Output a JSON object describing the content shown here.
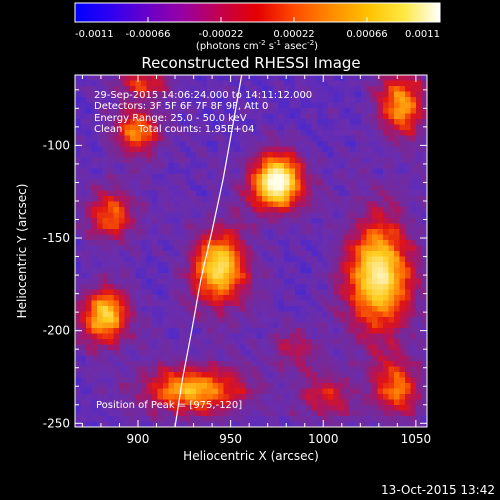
{
  "colorbar": {
    "tick_labels": [
      "-0.0011",
      "-0.00066",
      "-0.00022",
      "0.00022",
      "0.00066",
      "0.0011"
    ],
    "tick_values": [
      -0.0011,
      -0.00066,
      -0.00022,
      0.00022,
      0.00066,
      0.0011
    ],
    "range": [
      -0.0011,
      0.0011
    ],
    "units_main": "(photons cm",
    "units_sup1": "-2",
    "units_mid1": " s",
    "units_sup2": "-1",
    "units_mid2": " asec",
    "units_sup3": "-2",
    "units_end": ")",
    "colors": [
      "#0000ff",
      "#3000f0",
      "#6a00c8",
      "#9a00a0",
      "#c4004a",
      "#e40000",
      "#ff4a00",
      "#ff8a00",
      "#ffc000",
      "#ffe840",
      "#ffffff"
    ]
  },
  "chart_data": {
    "type": "heatmap",
    "title": "Reconstructed RHESSI Image",
    "xlabel": "Heliocentric X (arcsec)",
    "ylabel": "Heliocentric Y (arcsec)",
    "xlim": [
      866,
      1056
    ],
    "ylim": [
      -252,
      -62
    ],
    "xticks": [
      900,
      950,
      1000,
      1050
    ],
    "yticks": [
      -100,
      -150,
      -200,
      -250
    ],
    "xtick_labels": [
      "900",
      "950",
      "1000",
      "1050"
    ],
    "ytick_labels": [
      "-100",
      "-150",
      "-200",
      "-250"
    ],
    "annotations": [
      "29-Sep-2015 14:06:24.000 to 14:11:12.000",
      "Detectors: 3F 5F 6F 7F 8F 9F, Att 0",
      "Energy Range: 25.0 - 50.0 keV",
      "Clean     Total counts: 1.95E+04"
    ],
    "peak_label": "Position of Peak = [975,-120]",
    "peak": [
      975,
      -120
    ],
    "sources": [
      {
        "x": 975,
        "y": -120,
        "sx": 11,
        "sy": 12,
        "amp": 1.0
      },
      {
        "x": 944,
        "y": -166,
        "sx": 12,
        "sy": 16,
        "amp": 0.85
      },
      {
        "x": 1030,
        "y": -170,
        "sx": 14,
        "sy": 24,
        "amp": 0.9
      },
      {
        "x": 1042,
        "y": -78,
        "sx": 10,
        "sy": 14,
        "amp": 0.7
      },
      {
        "x": 900,
        "y": -92,
        "sx": 10,
        "sy": 10,
        "amp": 0.65
      },
      {
        "x": 886,
        "y": -138,
        "sx": 10,
        "sy": 11,
        "amp": 0.6
      },
      {
        "x": 882,
        "y": -192,
        "sx": 10,
        "sy": 12,
        "amp": 0.8
      },
      {
        "x": 930,
        "y": -232,
        "sx": 22,
        "sy": 10,
        "amp": 0.75
      },
      {
        "x": 1002,
        "y": -236,
        "sx": 12,
        "sy": 10,
        "amp": 0.45
      },
      {
        "x": 1040,
        "y": -232,
        "sx": 10,
        "sy": 12,
        "amp": 0.6
      },
      {
        "x": 902,
        "y": -66,
        "sx": 12,
        "sy": 6,
        "amp": 0.5
      },
      {
        "x": 984,
        "y": -210,
        "sx": 10,
        "sy": 8,
        "amp": 0.35
      }
    ],
    "limb_curve": [
      [
        956,
        -62
      ],
      [
        951,
        -90
      ],
      [
        946,
        -118
      ],
      [
        940,
        -146
      ],
      [
        934,
        -172
      ],
      [
        929,
        -200
      ],
      [
        924,
        -226
      ],
      [
        920,
        -252
      ]
    ]
  },
  "footer": {
    "timestamp": "13-Oct-2015 13:42"
  }
}
